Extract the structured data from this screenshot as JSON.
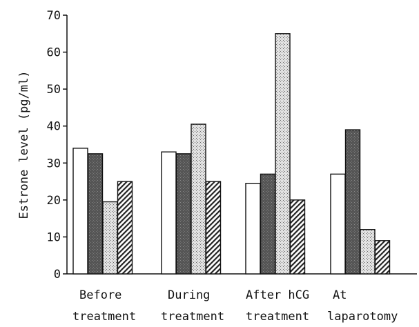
{
  "chart_data": {
    "type": "bar",
    "ylabel": "Estrone level (pg/ml)",
    "ylim": [
      0,
      70
    ],
    "yticks": [
      "0",
      "10",
      "20",
      "30",
      "40",
      "50",
      "60",
      "70"
    ],
    "categories": [
      [
        "Before",
        "treatment"
      ],
      [
        "During",
        "treatment"
      ],
      [
        "After hCG",
        "treatment"
      ],
      [
        "At",
        "laparotomy"
      ]
    ],
    "series": [
      {
        "fill": "white",
        "values": [
          34,
          33,
          24.5,
          27
        ]
      },
      {
        "fill": "dark-gray",
        "values": [
          32.5,
          32.5,
          27,
          39
        ]
      },
      {
        "fill": "dotted",
        "values": [
          19.5,
          40.5,
          65,
          12
        ]
      },
      {
        "fill": "hatched",
        "values": [
          25,
          25,
          20,
          9
        ]
      }
    ],
    "grid": false,
    "legend": "none"
  }
}
